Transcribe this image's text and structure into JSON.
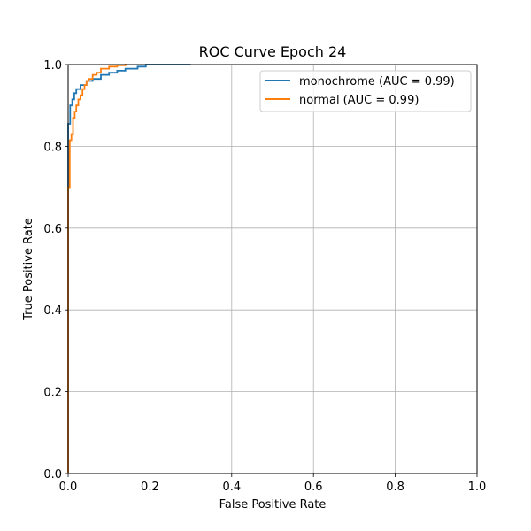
{
  "chart_data": {
    "type": "line",
    "title": "ROC Curve Epoch 24",
    "xlabel": "False Positive Rate",
    "ylabel": "True Positive Rate",
    "xlim": [
      0.0,
      1.0
    ],
    "ylim": [
      0.0,
      1.0
    ],
    "xticks": [
      "0.0",
      "0.2",
      "0.4",
      "0.6",
      "0.8",
      "1.0"
    ],
    "yticks": [
      "0.0",
      "0.2",
      "0.4",
      "0.6",
      "0.8",
      "1.0"
    ],
    "grid": true,
    "legend_position": "upper right",
    "series": [
      {
        "name": "monochrome (AUC = 0.99)",
        "color": "#1f77b4",
        "auc": 0.99,
        "x": [
          0.0,
          0.0,
          0.005,
          0.005,
          0.01,
          0.01,
          0.015,
          0.015,
          0.02,
          0.02,
          0.03,
          0.03,
          0.045,
          0.045,
          0.06,
          0.06,
          0.08,
          0.08,
          0.1,
          0.1,
          0.12,
          0.12,
          0.14,
          0.14,
          0.17,
          0.17,
          0.19,
          0.19,
          0.3
        ],
        "y": [
          0.0,
          0.855,
          0.855,
          0.9,
          0.9,
          0.915,
          0.915,
          0.93,
          0.93,
          0.94,
          0.94,
          0.95,
          0.95,
          0.96,
          0.96,
          0.965,
          0.965,
          0.975,
          0.975,
          0.98,
          0.98,
          0.985,
          0.985,
          0.99,
          0.99,
          0.995,
          0.995,
          1.0,
          1.0
        ]
      },
      {
        "name": "normal (AUC = 0.99)",
        "color": "#ff7f0e",
        "auc": 0.99,
        "x": [
          0.0,
          0.0,
          0.004,
          0.004,
          0.008,
          0.008,
          0.012,
          0.012,
          0.016,
          0.016,
          0.02,
          0.02,
          0.025,
          0.025,
          0.03,
          0.03,
          0.035,
          0.035,
          0.04,
          0.04,
          0.045,
          0.045,
          0.05,
          0.05,
          0.06,
          0.06,
          0.07,
          0.07,
          0.08,
          0.08,
          0.1,
          0.1,
          0.12,
          0.12,
          0.14,
          0.14,
          0.145
        ],
        "y": [
          0.0,
          0.7,
          0.7,
          0.815,
          0.815,
          0.83,
          0.83,
          0.87,
          0.87,
          0.885,
          0.885,
          0.9,
          0.9,
          0.915,
          0.915,
          0.925,
          0.925,
          0.94,
          0.94,
          0.95,
          0.95,
          0.96,
          0.96,
          0.965,
          0.965,
          0.975,
          0.975,
          0.98,
          0.98,
          0.99,
          0.99,
          0.995,
          0.995,
          0.998,
          0.998,
          1.0,
          1.0
        ]
      }
    ]
  },
  "legend": {
    "items": [
      {
        "label": "monochrome (AUC = 0.99)",
        "color": "#1f77b4"
      },
      {
        "label": "normal (AUC = 0.99)",
        "color": "#ff7f0e"
      }
    ]
  }
}
